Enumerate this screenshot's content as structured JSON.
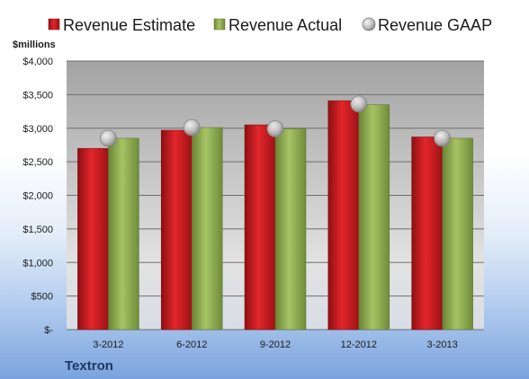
{
  "company": "Textron",
  "colors": {
    "estimate": "#c0171d",
    "actual": "#88a74a",
    "gaap": "#bfbfbf"
  },
  "chart_data": {
    "type": "bar",
    "categories": [
      "3-2012",
      "6-2012",
      "9-2012",
      "12-2012",
      "3-2013"
    ],
    "series": [
      {
        "name": "Revenue Estimate",
        "values": [
          2700,
          2970,
          3050,
          3410,
          2870
        ]
      },
      {
        "name": "Revenue Actual",
        "values": [
          2850,
          3010,
          2990,
          3350,
          2850
        ]
      },
      {
        "name": "Revenue GAAP",
        "values": [
          2850,
          3010,
          2990,
          3360,
          2850
        ]
      }
    ],
    "ylabel": "$millions",
    "ylim": [
      0,
      4000
    ],
    "ytick_values": [
      0,
      500,
      1000,
      1500,
      2000,
      2500,
      3000,
      3500,
      4000
    ],
    "ytick_labels": [
      "$-",
      "$500",
      "$1,000",
      "$1,500",
      "$2,000",
      "$2,500",
      "$3,000",
      "$3,500",
      "$4,000"
    ],
    "legend_position": "top",
    "grid": true
  }
}
